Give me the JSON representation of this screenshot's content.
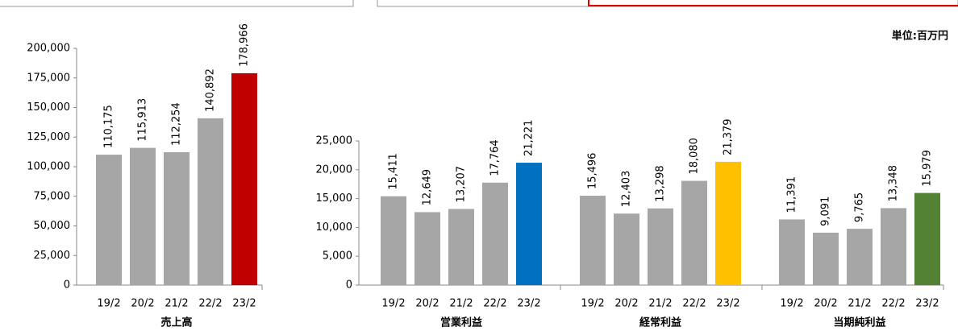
{
  "note": "単位:百万円",
  "chart_data": [
    {
      "type": "bar",
      "xlabel": "売上高",
      "categories": [
        "19/2",
        "20/2",
        "21/2",
        "22/2",
        "23/2"
      ],
      "values": [
        110175,
        115913,
        112254,
        140892,
        178966
      ],
      "value_labels": [
        "110,175",
        "115,913",
        "112,254",
        "140,892",
        "178,966"
      ],
      "colors": [
        "#a6a6a6",
        "#a6a6a6",
        "#a6a6a6",
        "#a6a6a6",
        "#c00000"
      ],
      "ylim": [
        0,
        200000
      ],
      "yticks": [
        0,
        {
          "value": 25000,
          "label": "25,000"
        },
        {
          "value": 50000,
          "label": "50,000"
        },
        {
          "value": 75000,
          "label": "75,000"
        },
        {
          "value": 100000,
          "label": "100,000"
        },
        {
          "value": 125000,
          "label": "125,000"
        },
        {
          "value": 150000,
          "label": "150,000"
        },
        {
          "value": 175000,
          "label": "175,000"
        },
        {
          "value": 200000,
          "label": "200,000"
        }
      ]
    },
    {
      "type": "bar",
      "xlabel": "営業利益",
      "categories": [
        "19/2",
        "20/2",
        "21/2",
        "22/2",
        "23/2"
      ],
      "values": [
        15411,
        12649,
        13207,
        17764,
        21221
      ],
      "value_labels": [
        "15,411",
        "12,649",
        "13,207",
        "17,764",
        "21,221"
      ],
      "colors": [
        "#a6a6a6",
        "#a6a6a6",
        "#a6a6a6",
        "#a6a6a6",
        "#0070c0"
      ],
      "ylim": [
        0,
        25000
      ],
      "yticks": [
        0,
        {
          "value": 5000,
          "label": "5,000"
        },
        {
          "value": 10000,
          "label": "10,000"
        },
        {
          "value": 15000,
          "label": "15,000"
        },
        {
          "value": 20000,
          "label": "20,000"
        },
        {
          "value": 25000,
          "label": "25,000"
        }
      ]
    },
    {
      "type": "bar",
      "xlabel": "経常利益",
      "categories": [
        "19/2",
        "20/2",
        "21/2",
        "22/2",
        "23/2"
      ],
      "values": [
        15496,
        12403,
        13298,
        18080,
        21379
      ],
      "value_labels": [
        "15,496",
        "12,403",
        "13,298",
        "18,080",
        "21,379"
      ],
      "colors": [
        "#a6a6a6",
        "#a6a6a6",
        "#a6a6a6",
        "#a6a6a6",
        "#ffc000"
      ],
      "ylim": [
        0,
        25000
      ]
    },
    {
      "type": "bar",
      "xlabel": "当期純利益",
      "categories": [
        "19/2",
        "20/2",
        "21/2",
        "22/2",
        "23/2"
      ],
      "values": [
        11391,
        9091,
        9765,
        13348,
        15979
      ],
      "value_labels": [
        "11,391",
        "9,091",
        "9,765",
        "13,348",
        "15,979"
      ],
      "colors": [
        "#a6a6a6",
        "#a6a6a6",
        "#a6a6a6",
        "#a6a6a6",
        "#548235"
      ],
      "ylim": [
        0,
        25000
      ]
    }
  ]
}
